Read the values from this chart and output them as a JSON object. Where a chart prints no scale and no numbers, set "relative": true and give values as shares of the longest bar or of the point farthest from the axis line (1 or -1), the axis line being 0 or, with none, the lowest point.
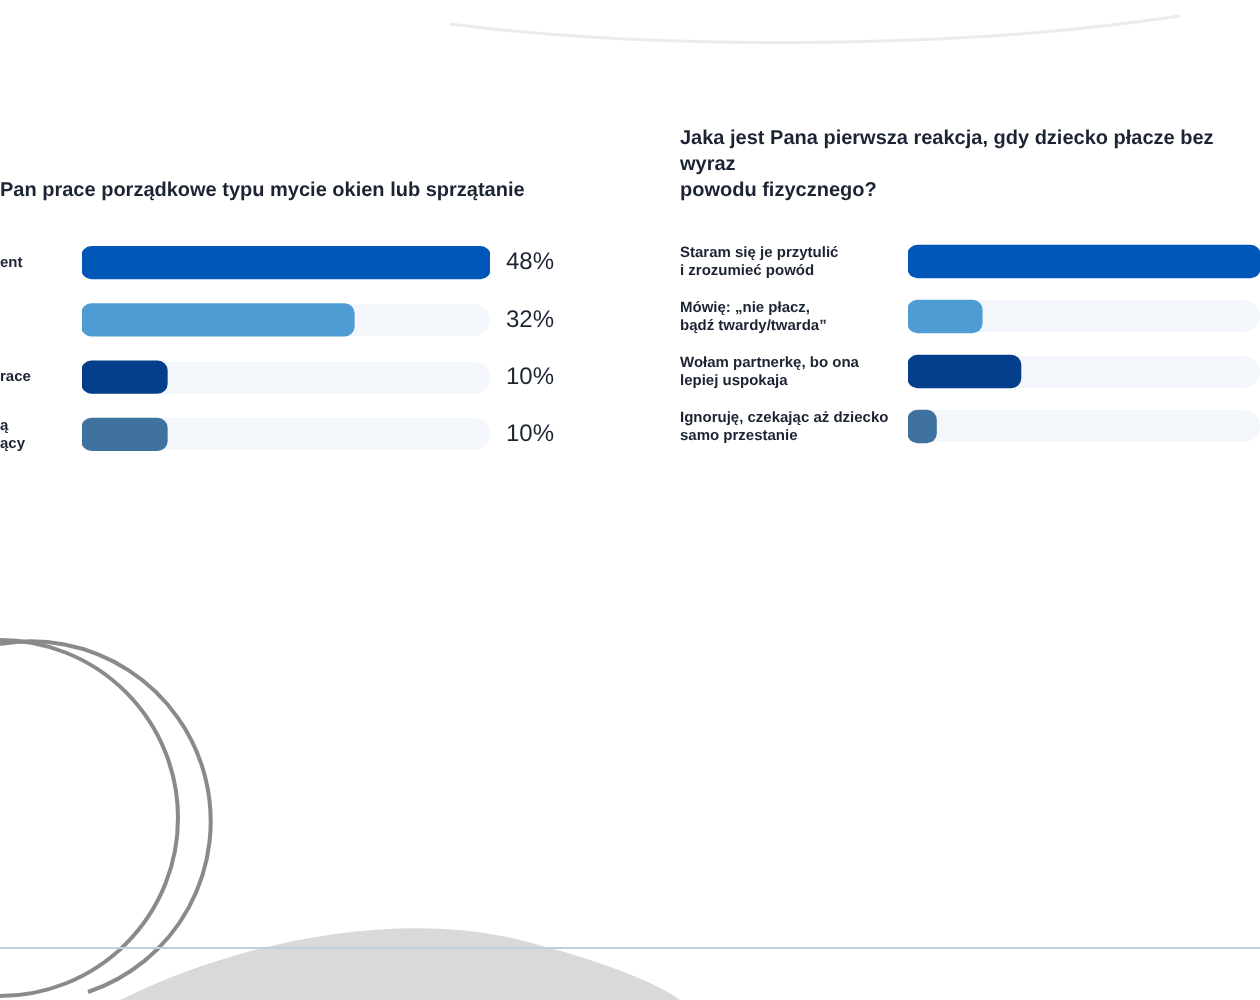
{
  "chart_data": [
    {
      "type": "bar",
      "orientation": "horizontal",
      "title": "Pan prace porządkowe typu mycie okien lub sprzątanie",
      "categories": [
        "ent",
        null,
        "race",
        "ą\nący"
      ],
      "values": [
        48,
        32,
        10,
        10
      ],
      "colors": [
        "#0057b8",
        "#4f9bd4",
        "#033f8a",
        "#3f729e"
      ],
      "value_labels": [
        "48%",
        "32%",
        "10%",
        "10%"
      ],
      "grid": false,
      "legend": false
    },
    {
      "type": "bar",
      "orientation": "horizontal",
      "relative": true,
      "title": "Jaka jest Pana pierwsza reakcja, gdy dziecko płacze bez wyraz\npowodu fizycznego?",
      "categories": [
        "Staram się je przytulić\ni zrozumieć powód",
        "Mówię: „nie płacz,\nbądź twardy/twarda”",
        "Wołam partnerkę, bo ona\nlepiej uspokaja",
        "Ignoruję, czekając aż dziecko\nsamo przestanie"
      ],
      "values": [
        1,
        0.21,
        0.32,
        0.08
      ],
      "colors": [
        "#0057b8",
        "#4f9bd4",
        "#033f8a",
        "#3f729e"
      ],
      "grid": false,
      "legend": false
    }
  ]
}
